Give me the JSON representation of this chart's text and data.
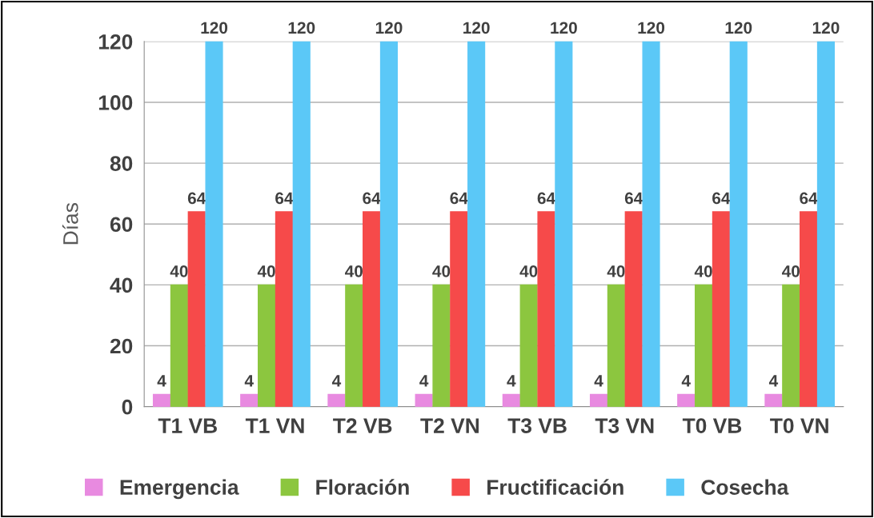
{
  "chart_data": {
    "type": "bar",
    "ylabel": "Días",
    "categories": [
      "T1 VB",
      "T1 VN",
      "T2 VB",
      "T2 VN",
      "T3 VB",
      "T3 VN",
      "T0 VB",
      "T0 VN"
    ],
    "series": [
      {
        "name": "Emergencia",
        "color": "#e88ae0",
        "values": [
          4,
          4,
          4,
          4,
          4,
          4,
          4,
          4
        ]
      },
      {
        "name": "Floración",
        "color": "#8cc63f",
        "values": [
          40,
          40,
          40,
          40,
          40,
          40,
          40,
          40
        ]
      },
      {
        "name": "Fructificación",
        "color": "#f64a4a",
        "values": [
          64,
          64,
          64,
          64,
          64,
          64,
          64,
          64
        ]
      },
      {
        "name": "Cosecha",
        "color": "#5bc8f7",
        "values": [
          120,
          120,
          120,
          120,
          120,
          120,
          120,
          120
        ]
      }
    ],
    "ylim": [
      0,
      120
    ],
    "yticks": [
      0,
      20,
      40,
      60,
      80,
      100,
      120
    ],
    "grid": "y",
    "legend": "bottom",
    "data_labels": true
  }
}
